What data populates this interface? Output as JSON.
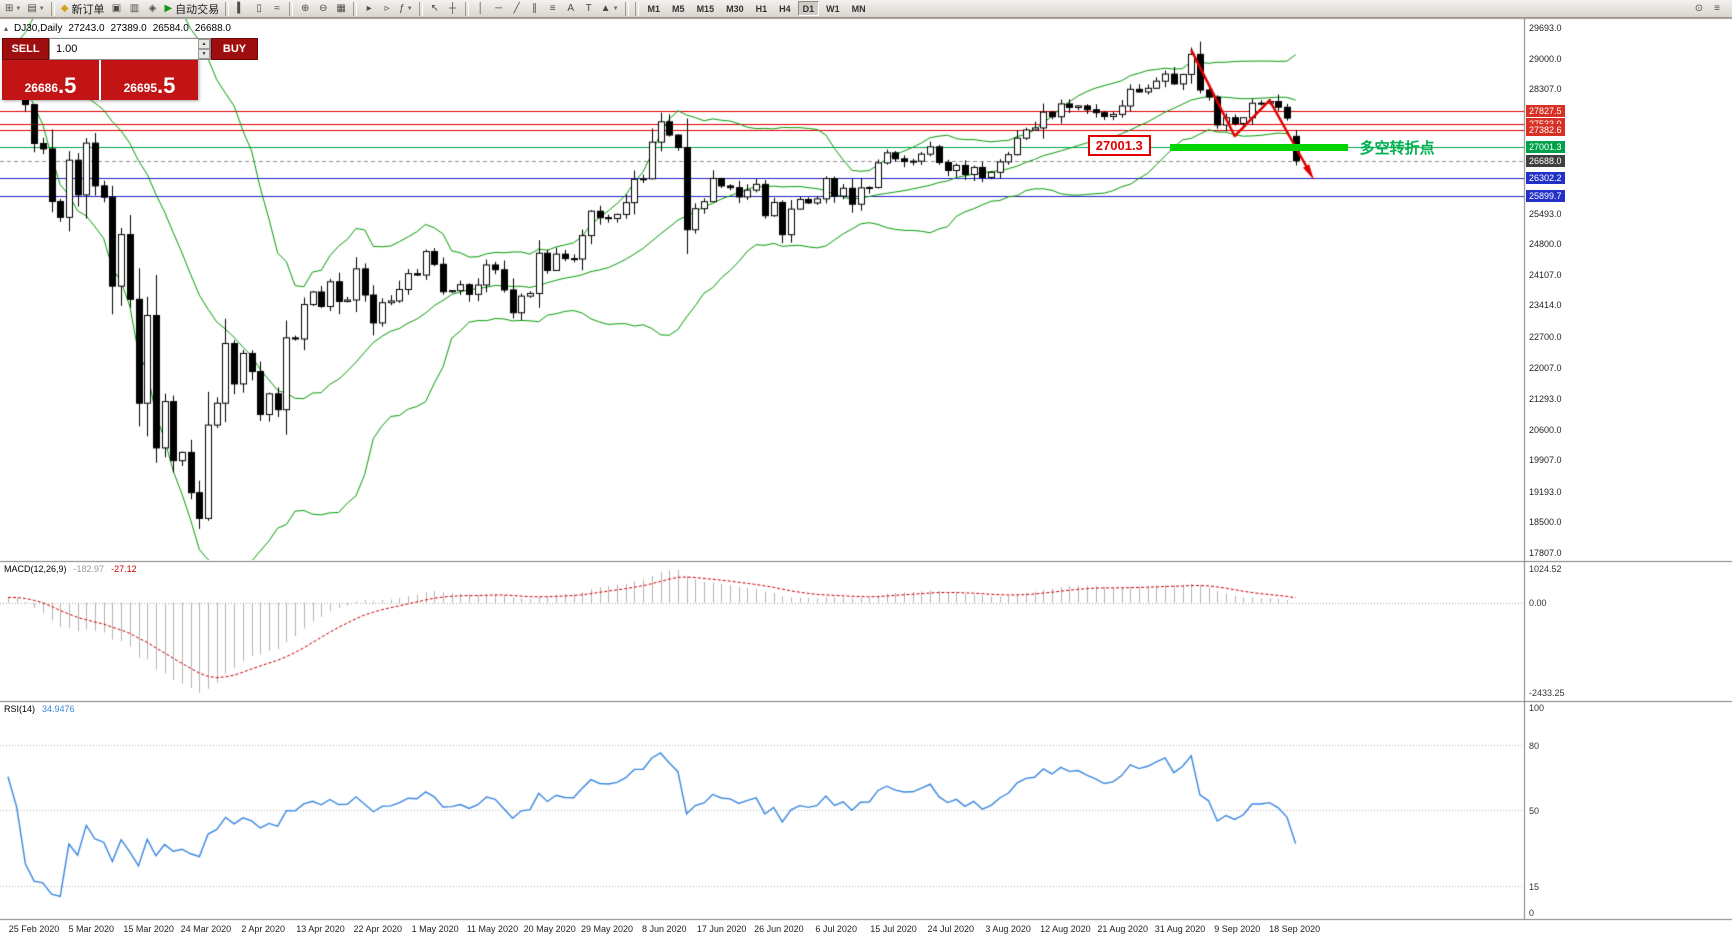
{
  "toolbar": {
    "new_order_label": "新订单",
    "auto_trading_label": "自动交易",
    "left_buttons": [
      {
        "name": "new-chart",
        "glyph": "⊞",
        "dropdown": true
      },
      {
        "name": "profiles",
        "glyph": "▤",
        "dropdown": true
      },
      {
        "sep": true
      },
      {
        "name": "new-order",
        "glyph": "◆",
        "label": "新订单",
        "accent": "#d4a017"
      },
      {
        "name": "market-watch",
        "glyph": "▣"
      },
      {
        "name": "data-window",
        "glyph": "▥"
      },
      {
        "name": "navigator",
        "glyph": "◈"
      },
      {
        "name": "auto-trading",
        "glyph": "▶",
        "label": "自动交易",
        "accent": "#159615"
      },
      {
        "sep": true
      },
      {
        "name": "bar-chart-mode",
        "glyph": "▍"
      },
      {
        "name": "candlestick-mode",
        "glyph": "▯"
      },
      {
        "name": "line-chart-mode",
        "glyph": "≈"
      },
      {
        "sep": true
      },
      {
        "name": "zoom-in",
        "glyph": "⊕"
      },
      {
        "name": "zoom-out",
        "glyph": "⊖"
      },
      {
        "name": "tile-windows",
        "glyph": "▦"
      },
      {
        "sep": true
      },
      {
        "name": "auto-scroll",
        "glyph": "▸"
      },
      {
        "name": "chart-shift",
        "glyph": "▹"
      },
      {
        "name": "indicators",
        "glyph": "ƒ",
        "dropdown": true
      },
      {
        "sep": true
      },
      {
        "name": "cursor",
        "glyph": "↖"
      },
      {
        "name": "crosshair",
        "glyph": "┼"
      },
      {
        "sep": true
      },
      {
        "name": "vertical-line",
        "glyph": "│"
      },
      {
        "name": "horizontal-line",
        "glyph": "─"
      },
      {
        "name": "trendline",
        "glyph": "╱"
      },
      {
        "name": "equidistant-channel",
        "glyph": "∥"
      },
      {
        "name": "fibonacci",
        "glyph": "≡"
      },
      {
        "name": "text",
        "glyph": "A"
      },
      {
        "name": "text-label",
        "glyph": "T"
      },
      {
        "name": "arrows",
        "glyph": "▲",
        "dropdown": true
      },
      {
        "sep": true
      }
    ],
    "timeframes": [
      "M1",
      "M5",
      "M15",
      "M30",
      "H1",
      "H4",
      "D1",
      "W1",
      "MN"
    ],
    "active_timeframe": "D1",
    "right_buttons": [
      {
        "name": "search",
        "glyph": "⊙"
      },
      {
        "name": "quick-menu",
        "glyph": "≡"
      }
    ]
  },
  "chart_header": {
    "symbol_period": "DJ30,Daily",
    "open": "27243.0",
    "high": "27389.0",
    "low": "26584.0",
    "close": "26688.0"
  },
  "one_click": {
    "sell_label": "SELL",
    "buy_label": "BUY",
    "volume": "1.00",
    "sell_price_main": "26686",
    "sell_price_frac": ".5",
    "buy_price_main": "26695",
    "buy_price_frac": ".5"
  },
  "price_axis": {
    "ticks": [
      "29693.0",
      "29000.0",
      "28307.0",
      "25493.0",
      "24800.0",
      "24107.0",
      "23414.0",
      "22700.0",
      "22007.0",
      "21293.0",
      "20600.0",
      "19907.0",
      "19193.0",
      "18500.0",
      "17807.0"
    ]
  },
  "macd": {
    "label": "MACD(12,26,9)",
    "main_value": "-182.97",
    "signal_value": "-27.12",
    "axis_top": "1024.52",
    "axis_zero": "0.00",
    "axis_bottom": "-2433.25"
  },
  "rsi": {
    "label": "RSI(14)",
    "value": "34.9476",
    "axis": [
      100,
      80,
      50,
      15,
      0
    ],
    "levels": [
      80,
      50,
      15
    ]
  },
  "annotations": {
    "price_label": "27001.3",
    "turning_point_label": "多空转折点",
    "zone": {
      "price": 27001.3,
      "from_bar": 134,
      "extra_width": 52
    },
    "zigzag": [
      {
        "bar": 136,
        "price": 29200
      },
      {
        "bar": 141,
        "price": 27250
      },
      {
        "bar": 145,
        "price": 28060
      },
      {
        "bar": 148,
        "price": 26430
      }
    ]
  },
  "chart_data": {
    "type": "candlestick",
    "title": "DJ30,Daily",
    "symbol": "DJ30",
    "timeframe": "Daily",
    "ylim": [
      17650,
      29900
    ],
    "x_labels": [
      "25 Feb 2020",
      "5 Mar 2020",
      "15 Mar 2020",
      "24 Mar 2020",
      "2 Apr 2020",
      "13 Apr 2020",
      "22 Apr 2020",
      "1 May 2020",
      "11 May 2020",
      "20 May 2020",
      "29 May 2020",
      "8 Jun 2020",
      "17 Jun 2020",
      "26 Jun 2020",
      "6 Jul 2020",
      "15 Jul 2020",
      "24 Jul 2020",
      "3 Aug 2020",
      "12 Aug 2020",
      "21 Aug 2020",
      "31 Aug 2020",
      "9 Sep 2020",
      "18 Sep 2020"
    ],
    "closes": [
      29220,
      28992,
      27961,
      27081,
      26958,
      25767,
      25409,
      26703,
      25917,
      27090,
      26121,
      25865,
      23851,
      25018,
      23553,
      21200,
      23186,
      20188,
      21237,
      19899,
      20087,
      19174,
      18592,
      20705,
      21200,
      22552,
      21637,
      22327,
      21917,
      20944,
      21413,
      21053,
      22680,
      22654,
      23434,
      23719,
      23390,
      23950,
      23504,
      23537,
      24242,
      23650,
      23018,
      23476,
      23515,
      23775,
      24134,
      24102,
      24634,
      24346,
      23724,
      23749,
      23883,
      23665,
      23876,
      24331,
      24222,
      23765,
      23248,
      23625,
      23685,
      24597,
      24206,
      24576,
      24474,
      24465,
      24995,
      25548,
      25401,
      25383,
      25475,
      25742,
      26270,
      26282,
      27111,
      27572,
      27272,
      26990,
      25128,
      25605,
      25763,
      26290,
      26120,
      26080,
      25871,
      26025,
      26156,
      25446,
      25746,
      25016,
      25596,
      25813,
      25735,
      25827,
      26287,
      25890,
      26067,
      25706,
      26075,
      26085,
      26642,
      26870,
      26734,
      26672,
      26681,
      26840,
      27005,
      26652,
      26470,
      26585,
      26379,
      26539,
      26313,
      26428,
      26664,
      26828,
      27202,
      27387,
      27433,
      27791,
      27686,
      27977,
      27897,
      27931,
      27845,
      27778,
      27693,
      27740,
      27930,
      28308,
      28248,
      28331,
      28492,
      28653,
      28430,
      28645,
      29100,
      28292,
      28133,
      27500,
      27665,
      27534,
      27665,
      27993,
      27995,
      28032,
      27902,
      27657,
      26688
    ],
    "last_bar": {
      "open": 27243.0,
      "high": 27389.0,
      "low": 26584.0,
      "close": 26688.0
    },
    "indicators": {
      "bollinger": {
        "period": 20,
        "deviation": 2,
        "color": "#089b08"
      },
      "macd": {
        "fast": 12,
        "slow": 26,
        "signal": 9,
        "hist_color": "#b4b4b4",
        "signal_color": "#cc0000"
      },
      "rsi": {
        "period": 14,
        "color": "#3a87de"
      }
    },
    "levels": [
      {
        "value": 27827.5,
        "color": "#e00000",
        "tag": "27827.5",
        "tag_bg": "#d93025"
      },
      {
        "value": 27533.0,
        "color": "#e00000",
        "tag": "27533.0",
        "tag_bg": "#d93025"
      },
      {
        "value": 27382.6,
        "color": "#e00000",
        "tag": "27382.6",
        "tag_bg": "#d93025"
      },
      {
        "value": 27001.3,
        "color": "#00a14b",
        "tag": "27001.3",
        "tag_bg": "#00a14b"
      },
      {
        "value": 26688.0,
        "color": "#909090",
        "dashed": true,
        "tag": "26688.0",
        "tag_bg": "#3f3f3f"
      },
      {
        "value": 26302.2,
        "color": "#2222cc",
        "tag": "26302.2",
        "tag_bg": "#2230c8"
      },
      {
        "value": 25899.7,
        "color": "#2222cc",
        "tag": "25899.7",
        "tag_bg": "#2230c8"
      }
    ]
  }
}
